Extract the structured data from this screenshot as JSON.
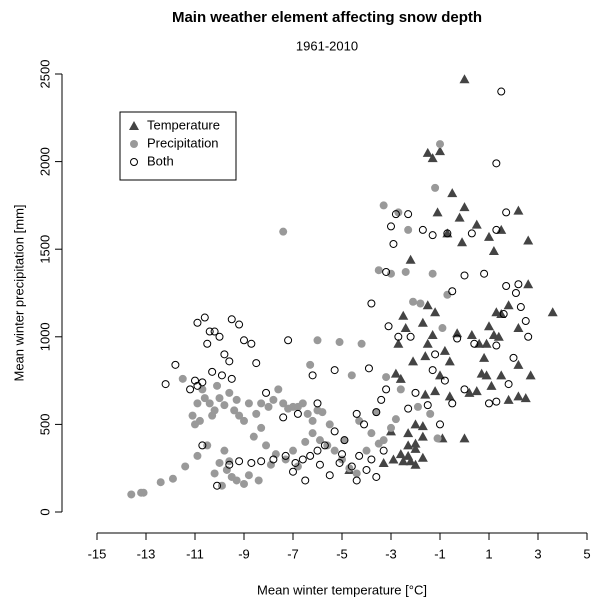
{
  "chart_data": {
    "type": "scatter",
    "title": "Main weather element affecting snow depth",
    "subtitle": "1961-2010",
    "x_label": "Mean winter temperature [°C]",
    "y_label": "Mean winter precipitation [mm]",
    "xlim": [
      -15,
      5
    ],
    "ylim": [
      0,
      2500
    ],
    "xticks": [
      -15,
      -13,
      -11,
      -9,
      -7,
      -5,
      -3,
      -1,
      1,
      3,
      5
    ],
    "yticks": [
      0,
      500,
      1000,
      1500,
      2000,
      2500
    ],
    "legend": "top-left",
    "series": [
      {
        "name": "Temperature",
        "color": "#444444",
        "marker": "triangle",
        "x": [
          0,
          -1.5,
          -1.3,
          -1.0,
          -0.5,
          0,
          -1.1,
          -0.2,
          0.5,
          -0.7,
          1.0,
          1.2,
          1.5,
          2.2,
          2.6,
          -0.1,
          2.6,
          3.6,
          -2.2,
          -1.5,
          -1.7,
          -1.3,
          -1.5,
          -1.6,
          -2.5,
          -2.4,
          -2.7,
          -1.2,
          -0.8,
          -0.6,
          -0.3,
          0.3,
          0.6,
          0.9,
          1.3,
          1.5,
          1.8,
          1.0,
          1.2,
          1.4,
          0.8,
          0.7,
          1.5,
          2.2,
          2.7,
          2.2,
          -2.8,
          -2.6,
          -2.1,
          -1.0,
          -1.2,
          -1.6,
          -0.6,
          0.2,
          0.5,
          1.1,
          1.8,
          2.2,
          2.5,
          0.9,
          -0.9,
          -1.7,
          -2.3,
          -2.3,
          -2.0,
          -2.3,
          -2.5,
          -2.9,
          -3.3,
          -2.0,
          -2.2,
          -1.7,
          -2.6,
          -2.0,
          -1.7,
          -2.0,
          -3.0,
          -4.7,
          0
        ],
        "values": [
          2470,
          2050,
          2020,
          2060,
          1820,
          1740,
          1710,
          1680,
          1640,
          1590,
          1570,
          1490,
          1610,
          1720,
          1550,
          1540,
          1300,
          1140,
          1440,
          1180,
          1080,
          1010,
          960,
          890,
          1120,
          1050,
          960,
          1140,
          920,
          860,
          1020,
          1010,
          960,
          960,
          1140,
          1130,
          1180,
          1060,
          1010,
          1000,
          880,
          790,
          780,
          840,
          780,
          1050,
          790,
          760,
          860,
          780,
          690,
          670,
          660,
          680,
          690,
          720,
          640,
          660,
          650,
          780,
          420,
          430,
          450,
          380,
          360,
          320,
          290,
          300,
          280,
          270,
          290,
          310,
          330,
          390,
          490,
          500,
          460,
          240,
          420
        ]
      },
      {
        "name": "Precipitation",
        "color": "#999999",
        "marker": "circle",
        "x": [
          -13.6,
          -13.2,
          -13.1,
          -12.4,
          -11.9,
          -11.4,
          -10.9,
          -10.5,
          -10.2,
          -9.9,
          -9.5,
          -9.3,
          -9.0,
          -8.8,
          -9.7,
          -10.0,
          -9.8,
          -10.3,
          -10.8,
          -11.0,
          -10.9,
          -10.7,
          -10.6,
          -10.4,
          -10.2,
          -10.0,
          -9.8,
          -9.6,
          -9.4,
          -9.2,
          -9.0,
          -9.3,
          -8.8,
          -8.5,
          -8.3,
          -8.0,
          -7.8,
          -7.6,
          -7.4,
          -7.2,
          -7.0,
          -6.8,
          -6.6,
          -6.4,
          -6.2,
          -6.0,
          -8.1,
          -7.7,
          -7.3,
          -7.0,
          -6.8,
          -6.5,
          -6.2,
          -5.9,
          -5.6,
          -5.3,
          -5.0,
          -4.7,
          -4.4,
          -4.0,
          -3.8,
          -3.5,
          -3.3,
          -3.0,
          -5.5,
          -5.8,
          -6.0,
          -6.3,
          -4.6,
          -4.2,
          -5.1,
          -7.4,
          -3.3,
          -2.7,
          -2.3,
          -3.5,
          -3.0,
          -2.4,
          -1.3,
          -0.7,
          -0.9,
          -1.2,
          -1.0,
          -1.8,
          -2.1,
          -3.2,
          -2.6,
          -1.9,
          -1.4,
          -1.1,
          -2.8,
          -3.6,
          -4.3,
          -4.9,
          -8.6,
          -8.3,
          -7.9,
          -8.4,
          -9.6,
          -11.1,
          -10.1,
          -11.5
        ],
        "values": [
          100,
          110,
          110,
          170,
          190,
          260,
          320,
          380,
          220,
          150,
          200,
          180,
          160,
          210,
          240,
          280,
          350,
          550,
          520,
          500,
          620,
          700,
          650,
          620,
          580,
          650,
          610,
          680,
          580,
          550,
          520,
          640,
          620,
          560,
          620,
          600,
          640,
          700,
          620,
          590,
          600,
          600,
          620,
          560,
          520,
          580,
          380,
          330,
          300,
          350,
          260,
          400,
          450,
          410,
          380,
          350,
          300,
          250,
          220,
          350,
          450,
          390,
          410,
          480,
          500,
          570,
          980,
          840,
          780,
          960,
          970,
          1600,
          1750,
          1710,
          1610,
          1380,
          1360,
          1370,
          1360,
          1240,
          1050,
          1850,
          2100,
          1190,
          1200,
          770,
          700,
          600,
          560,
          420,
          530,
          570,
          520,
          410,
          430,
          480,
          270,
          180,
          290,
          550,
          720,
          760
        ]
      },
      {
        "name": "Both",
        "color": "#000000",
        "marker": "open-circle",
        "x": [
          1.5,
          1.3,
          -2.8,
          -2.3,
          -3.0,
          -1.7,
          -0.7,
          0.3,
          1.3,
          1.7,
          -2.9,
          -1.3,
          -3.2,
          -3.8,
          -0.5,
          0,
          0.8,
          1.7,
          2.2,
          1.6,
          2.1,
          -3.1,
          -2.7,
          -1.2,
          -0.3,
          0.4,
          1.3,
          2.0,
          2.5,
          2.6,
          2.3,
          -2.2,
          -1.3,
          -0.8,
          0,
          1.0,
          1.3,
          1.8,
          -0.5,
          -2.0,
          -2.3,
          -1.5,
          -1.0,
          -3.2,
          -3.4,
          -3.9,
          -3.6,
          -4.1,
          -4.4,
          -4.9,
          -5.3,
          -5.7,
          -6.0,
          -6.3,
          -6.6,
          -6.9,
          -7.3,
          -7.8,
          -8.3,
          -8.7,
          -9.2,
          -9.6,
          -10.1,
          -10.7,
          -5.9,
          -5.1,
          -4.6,
          -4.3,
          -4.0,
          -3.6,
          -4.4,
          -5.5,
          -5.0,
          -3.8,
          -3.3,
          -6.5,
          -7.0,
          -12.2,
          -11.8,
          -11.2,
          -11.0,
          -10.9,
          -10.6,
          -10.4,
          -10.2,
          -10.0,
          -9.8,
          -9.6,
          -10.5,
          -10.3,
          -9.9,
          -9.5,
          -9.2,
          -9.5,
          -9.0,
          -8.7,
          -8.5,
          -7.2,
          -6.2,
          -5.3,
          -10.9,
          -10.7,
          -8.1,
          -7.4,
          -6.8,
          -6.0
        ],
        "values": [
          2400,
          1990,
          1700,
          1700,
          1630,
          1610,
          1590,
          1590,
          1610,
          1710,
          1530,
          1580,
          1370,
          1190,
          1260,
          1350,
          1360,
          1290,
          1300,
          1130,
          1250,
          1060,
          1000,
          900,
          990,
          960,
          950,
          880,
          1090,
          1000,
          1170,
          1000,
          810,
          750,
          700,
          620,
          630,
          730,
          620,
          680,
          590,
          610,
          500,
          700,
          640,
          820,
          570,
          500,
          560,
          410,
          460,
          380,
          350,
          320,
          300,
          280,
          320,
          300,
          290,
          280,
          290,
          270,
          150,
          380,
          270,
          280,
          260,
          320,
          240,
          200,
          180,
          210,
          330,
          300,
          350,
          180,
          230,
          730,
          840,
          700,
          750,
          1080,
          1110,
          1030,
          1030,
          1000,
          900,
          860,
          960,
          800,
          780,
          760,
          1070,
          1100,
          980,
          960,
          850,
          980,
          780,
          810,
          720,
          740,
          680,
          540,
          560,
          620
        ]
      }
    ]
  }
}
